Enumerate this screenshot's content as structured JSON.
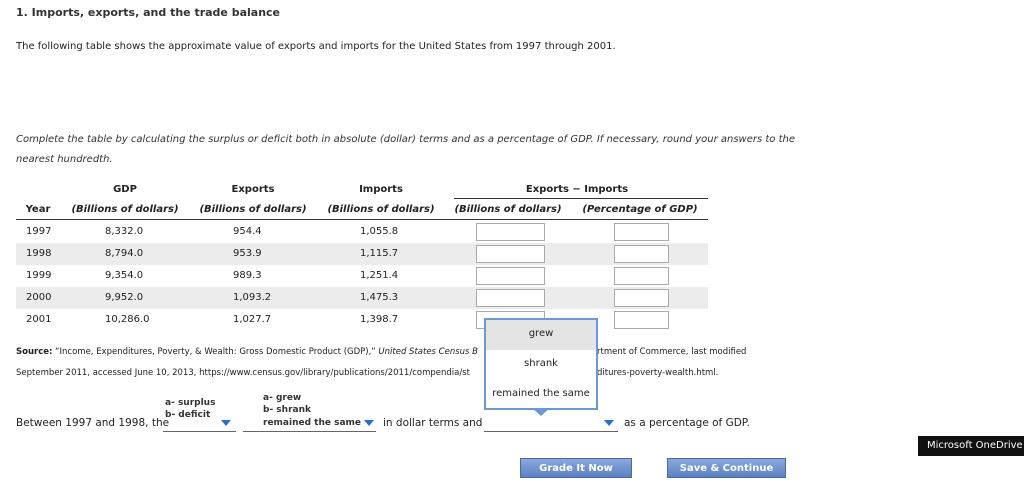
{
  "header": {
    "title": "1. Imports, exports, and the trade balance"
  },
  "intro": "The following table shows the approximate value of exports and imports for the United States from 1997 through 2001.",
  "instructions": "Complete the table by calculating the surplus or deficit both in absolute (dollar) terms and as a percentage of GDP. If necessary, round your answers to the nearest hundredth.",
  "table": {
    "headers_top": [
      "GDP",
      "Exports",
      "Imports",
      "Exports − Imports"
    ],
    "headers": [
      "Year",
      "(Billions of dollars)",
      "(Billions of dollars)",
      "(Billions of dollars)",
      "(Billions of dollars)",
      "(Percentage of GDP)"
    ],
    "rows": [
      [
        "1997",
        "8,332.0",
        "954.4",
        "1,055.8"
      ],
      [
        "1998",
        "8,794.0",
        "953.9",
        "1,115.7"
      ],
      [
        "1999",
        "9,354.0",
        "989.3",
        "1,251.4"
      ],
      [
        "2000",
        "9,952.0",
        "1,093.2",
        "1,475.3"
      ],
      [
        "2001",
        "10,286.0",
        "1,027.7",
        "1,398.7"
      ]
    ]
  },
  "source": {
    "label": "Source:",
    "text_1": "“Income, Expenditures, Poverty, & Wealth: Gross Domestic Product (GDP),”",
    "publication": "United States Census B",
    "text_2": "rtment of Commerce, last modified",
    "text_3": "September 2011, accessed June 10, 2013, https://www.census.gov/library/publications/2011/compendia/st",
    "text_4": "ditures-poverty-wealth.html."
  },
  "question": {
    "prefix": "Between 1997 and 1998, the",
    "blank_1_options": [
      "a- surplus",
      "b- deficit"
    ],
    "blank_2_options": [
      "a- grew",
      "b- shrank",
      "remained the same"
    ],
    "middle": "in dollar terms and",
    "suffix": "as a percentage of GDP."
  },
  "dropdown_popup": [
    "grew",
    "shrank",
    "remained the same"
  ],
  "buttons": [
    "Grade It Now",
    "Save & Continue"
  ],
  "taskbar_tooltip": "Microsoft OneDrive"
}
